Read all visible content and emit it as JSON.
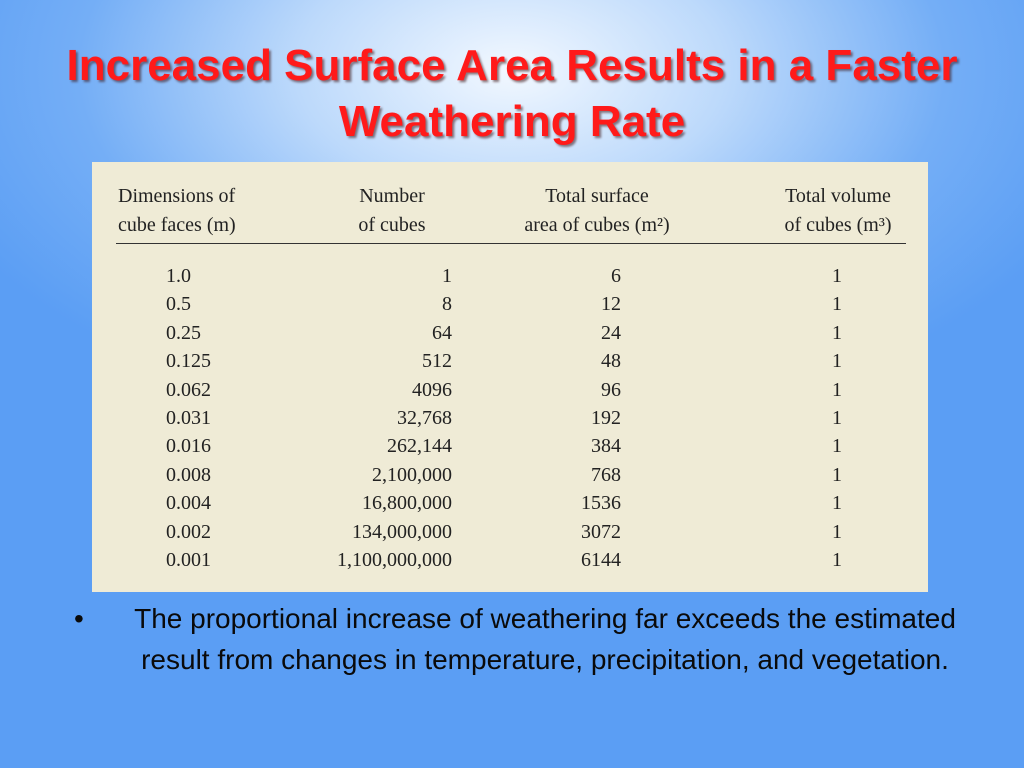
{
  "slide": {
    "title": "Increased Surface Area Results in a Faster Weathering Rate"
  },
  "table": {
    "headers": [
      [
        "Dimensions of",
        "cube faces (m)"
      ],
      [
        "Number",
        "of cubes"
      ],
      [
        "Total surface",
        "area of cubes (m²)"
      ],
      [
        "Total volume",
        "of cubes (m³)"
      ]
    ],
    "rows": [
      [
        "1.0",
        "1",
        "6",
        "1"
      ],
      [
        "0.5",
        "8",
        "12",
        "1"
      ],
      [
        "0.25",
        "64",
        "24",
        "1"
      ],
      [
        "0.125",
        "512",
        "48",
        "1"
      ],
      [
        "0.062",
        "4096",
        "96",
        "1"
      ],
      [
        "0.031",
        "32,768",
        "192",
        "1"
      ],
      [
        "0.016",
        "262,144",
        "384",
        "1"
      ],
      [
        "0.008",
        "2,100,000",
        "768",
        "1"
      ],
      [
        "0.004",
        "16,800,000",
        "1536",
        "1"
      ],
      [
        "0.002",
        "134,000,000",
        "3072",
        "1"
      ],
      [
        "0.001",
        "1,100,000,000",
        "6144",
        "1"
      ]
    ]
  },
  "bullets": [
    {
      "marker": "•",
      "text": "The proportional increase of weathering far exceeds the estimated result from changes in temperature, precipitation, and vegetation."
    }
  ],
  "colors": {
    "title": "#ff1a1a",
    "table_background": "#efebd6",
    "background_center": "#f2f8ff",
    "background_edge": "#5b9ef4"
  }
}
